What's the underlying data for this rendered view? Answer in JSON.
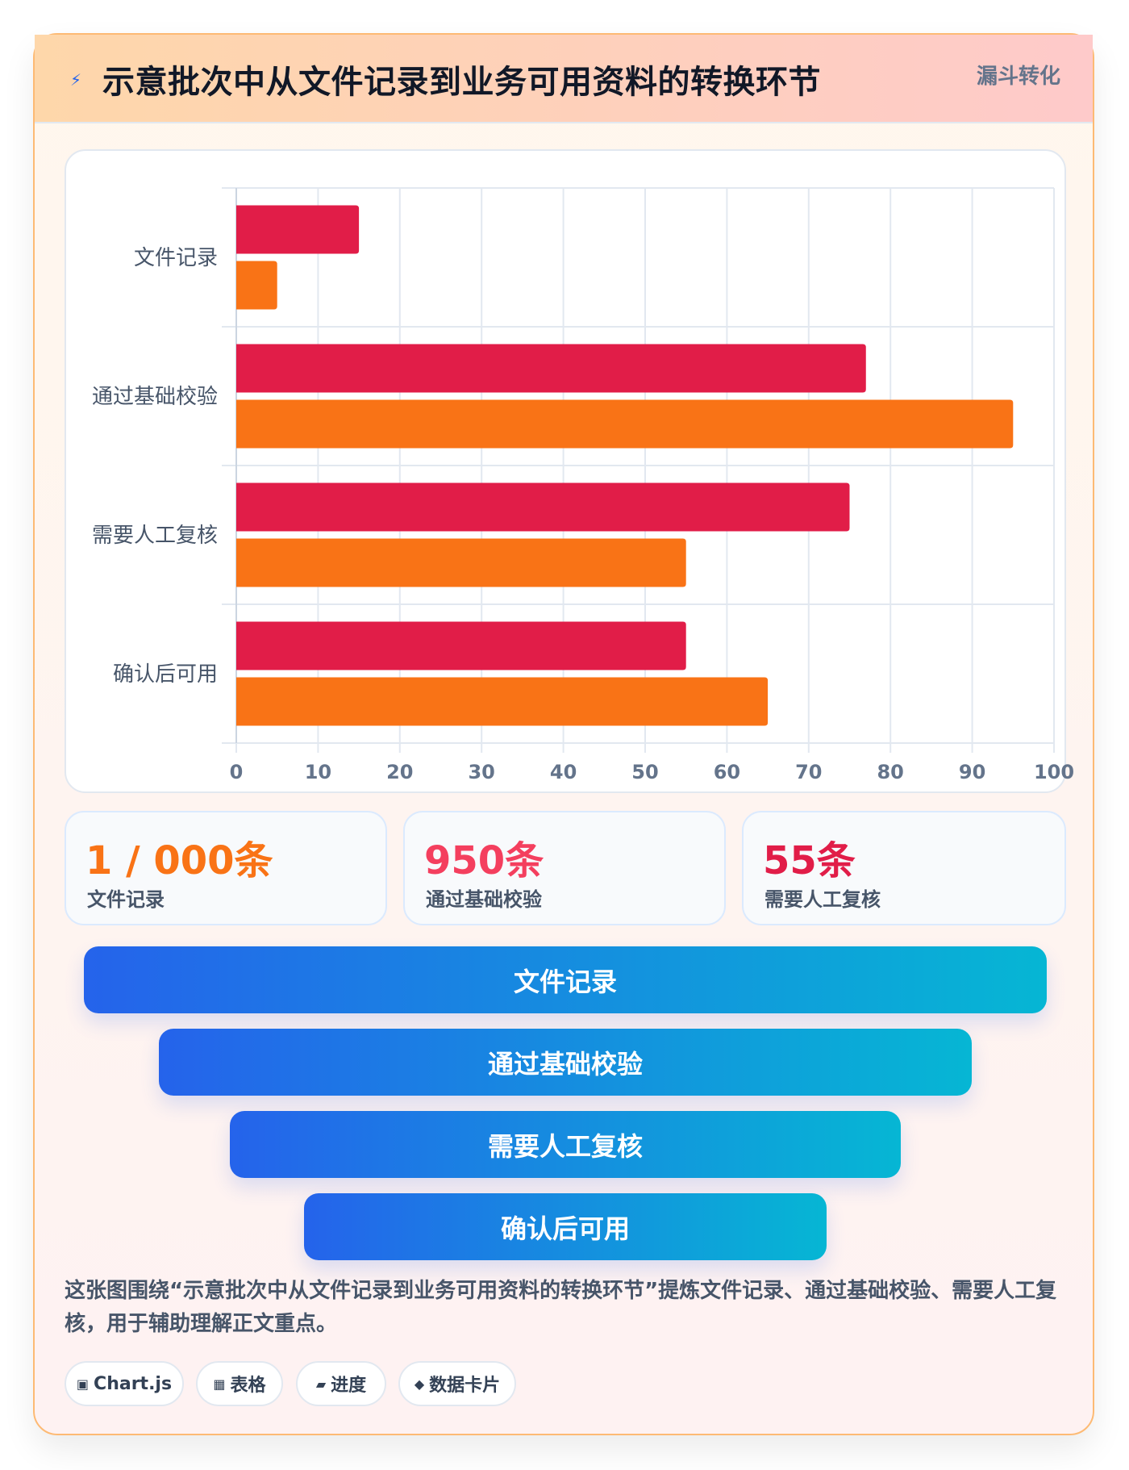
{
  "header": {
    "icon": "lightning-icon",
    "icon_glyph": "⚡",
    "title": "示意批次中从文件记录到业务可用资料的转换环节",
    "badge": "漏斗转化"
  },
  "chart_data": {
    "type": "bar",
    "orientation": "horizontal",
    "categories": [
      "文件记录",
      "通过基础校验",
      "需要人工复核",
      "确认后可用"
    ],
    "series": [
      {
        "values": [
          15,
          77,
          75,
          55
        ],
        "color": "#e11d48"
      },
      {
        "values": [
          5,
          95,
          55,
          65
        ],
        "color": "#f97316"
      }
    ],
    "x_ticks": [
      0,
      10,
      20,
      30,
      40,
      50,
      60,
      70,
      80,
      90,
      100
    ],
    "xlim": [
      0,
      100
    ],
    "grid": true,
    "legend": "none"
  },
  "kpis": [
    {
      "value": "1 / 000条",
      "label": "文件记录",
      "color": "#f97316"
    },
    {
      "value": "950条",
      "label": "通过基础校验",
      "color": "#f43f5e"
    },
    {
      "value": "55条",
      "label": "需要人工复核",
      "color": "#e11d48"
    }
  ],
  "funnel": {
    "steps": [
      "文件记录",
      "通过基础校验",
      "需要人工复核",
      "确认后可用"
    ]
  },
  "summary": "这张图围绕“示意批次中从文件记录到业务可用资料的转换环节”提炼文件记录、通过基础校验、需要人工复核，用于辅助理解正文重点。",
  "tags": [
    {
      "label": "Chart.js",
      "icon": "chip-icon",
      "glyph": "▣"
    },
    {
      "label": "表格",
      "icon": "grid-icon",
      "glyph": "▦"
    },
    {
      "label": "进度",
      "icon": "progress-icon",
      "glyph": "▰"
    },
    {
      "label": "数据卡片",
      "icon": "diamond-icon",
      "glyph": "◆"
    }
  ]
}
